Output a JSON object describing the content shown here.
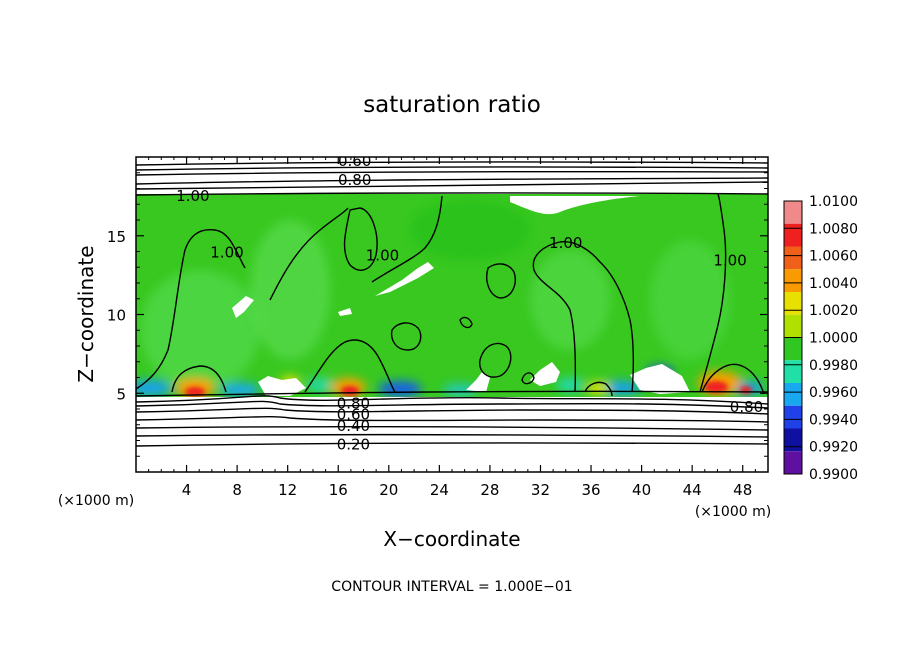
{
  "chart_data": {
    "type": "heatmap",
    "title": "saturation ratio",
    "xlabel": "X−coordinate",
    "ylabel": "Z−coordinate",
    "x_unit_left": "(×1000 m)",
    "x_unit_right": "(×1000 m)",
    "xlim": [
      0,
      50
    ],
    "ylim": [
      0,
      20
    ],
    "x_ticks": [
      4,
      8,
      12,
      16,
      20,
      24,
      28,
      32,
      36,
      40,
      44,
      48
    ],
    "x_tick_labels": [
      "4",
      "8",
      "12",
      "16",
      "20",
      "24",
      "28",
      "32",
      "36",
      "40",
      "44",
      "48"
    ],
    "y_ticks": [
      5,
      10,
      15
    ],
    "y_tick_labels": [
      "5",
      "10",
      "15"
    ],
    "footer": "CONTOUR INTERVAL = 1.000E−01",
    "colorbar": {
      "labels": [
        "1.0100",
        "1.0080",
        "1.0060",
        "1.0040",
        "1.0020",
        "1.0000",
        "0.9980",
        "0.9960",
        "0.9940",
        "0.9920",
        "0.9900"
      ],
      "colors": [
        "#f08a8a",
        "#ee2020",
        "#f06018",
        "#f89a00",
        "#e8e000",
        "#b0e000",
        "#30c820",
        "#20e0a8",
        "#18a8f0",
        "#2040e8",
        "#1010a0",
        "#6010a0"
      ]
    },
    "contour_labels": [
      {
        "text": "0.60",
        "x": 17.3,
        "z": 19.8
      },
      {
        "text": "0.80",
        "x": 17.3,
        "z": 18.6
      },
      {
        "text": "1.00",
        "x": 4.5,
        "z": 17.6
      },
      {
        "text": "1.00",
        "x": 7.2,
        "z": 14.0
      },
      {
        "text": "1.00",
        "x": 19.5,
        "z": 13.8
      },
      {
        "text": "1.00",
        "x": 34.0,
        "z": 14.6
      },
      {
        "text": "1.00",
        "x": 47.0,
        "z": 13.5
      },
      {
        "text": "0.80",
        "x": 17.2,
        "z": 4.4
      },
      {
        "text": "0.60",
        "x": 17.2,
        "z": 3.7
      },
      {
        "text": "0.40",
        "x": 17.2,
        "z": 3.0
      },
      {
        "text": "0.20",
        "x": 17.2,
        "z": 1.8
      },
      {
        "text": "0.80",
        "x": 48.3,
        "z": 4.2
      }
    ],
    "fields": {
      "background_band_z": [
        4.8,
        17.5
      ],
      "background_value": 1.0
    }
  }
}
